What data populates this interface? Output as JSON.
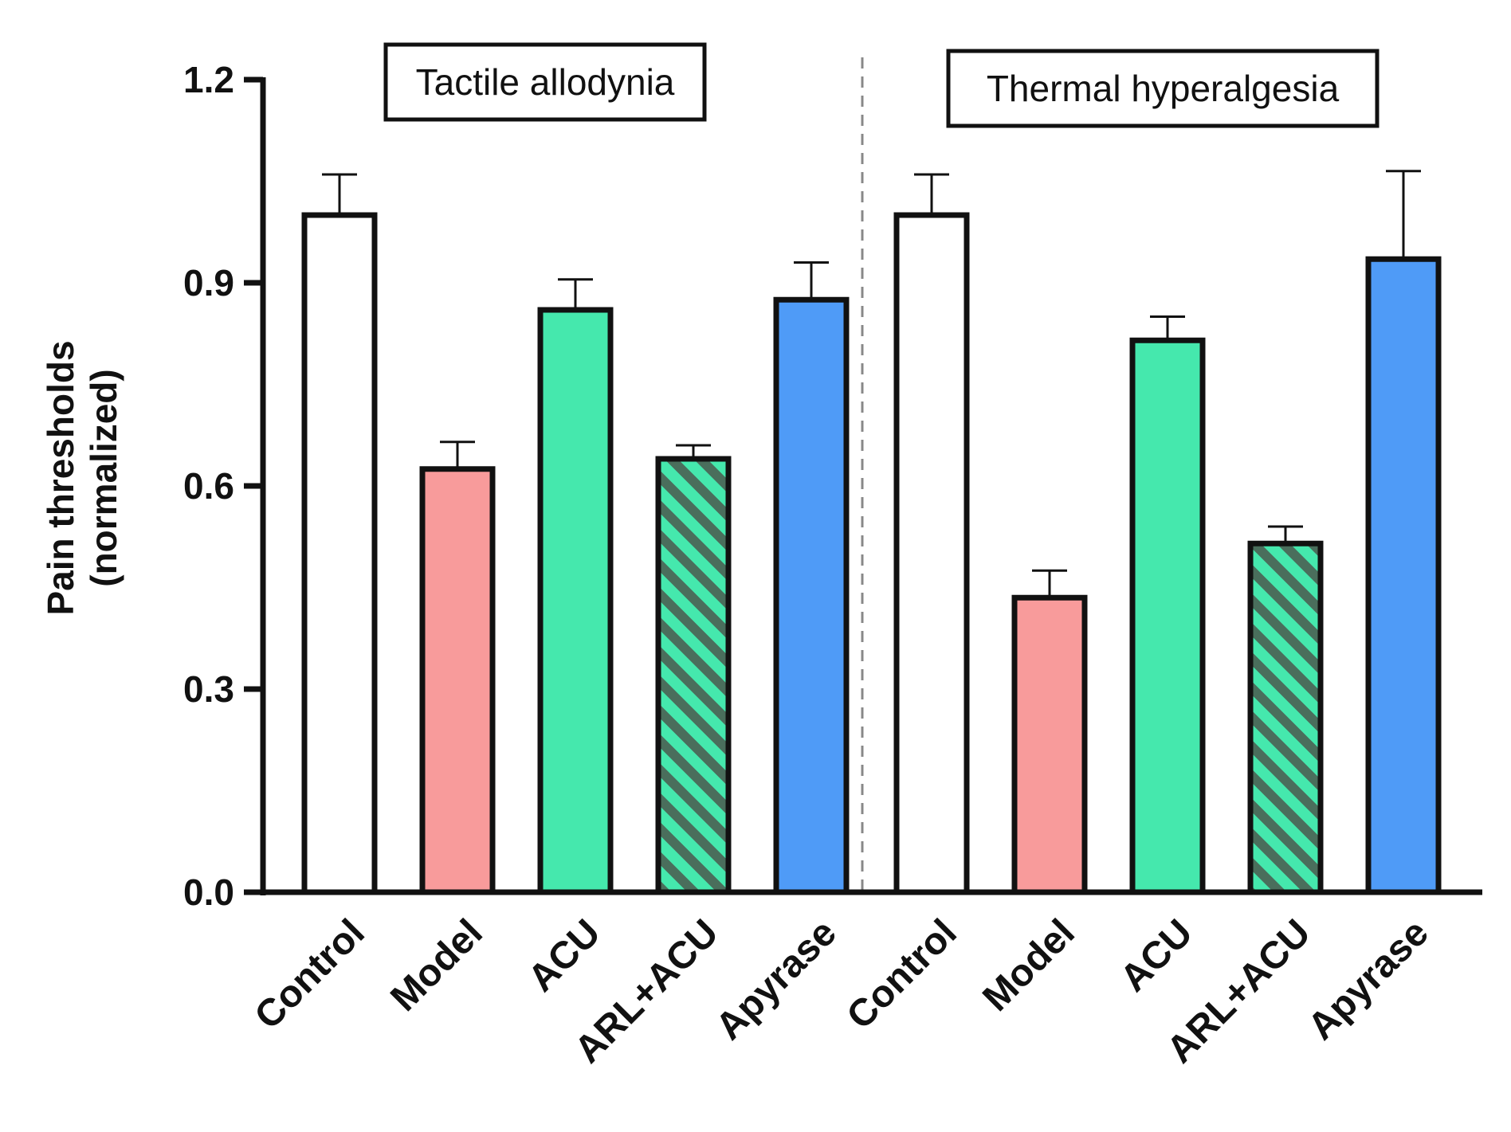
{
  "chart_data": {
    "type": "bar",
    "title": "",
    "xlabel": "",
    "ylabel": [
      "Pain thresholds",
      "(normalized)"
    ],
    "ylim": [
      0,
      1.2
    ],
    "yticks": [
      0.0,
      0.3,
      0.6,
      0.9,
      1.2
    ],
    "ytick_labels": [
      "0.0",
      "0.3",
      "0.6",
      "0.9",
      "1.2"
    ],
    "grid": false,
    "legend": "none",
    "colors": {
      "Control": "#ffffff",
      "Model": "#f89b9b",
      "ACU": "#45e8ad",
      "ARL+ACU": "#45e8ad",
      "ARL+ACU_stripe": "#4a6e5c",
      "Apyrase": "#4f9bf7",
      "outline": "#111111",
      "divider": "#888888"
    },
    "groups": [
      {
        "name": "Tactile allodynia",
        "categories": [
          "Control",
          "Model",
          "ACU",
          "ARL+ACU",
          "Apyrase"
        ],
        "values": [
          1.0,
          0.625,
          0.86,
          0.64,
          0.875
        ],
        "errors": [
          0.06,
          0.04,
          0.045,
          0.02,
          0.055
        ],
        "hatched": [
          false,
          false,
          false,
          true,
          false
        ]
      },
      {
        "name": "Thermal hyperalgesia",
        "categories": [
          "Control",
          "Model",
          "ACU",
          "ARL+ACU",
          "Apyrase"
        ],
        "values": [
          1.0,
          0.435,
          0.815,
          0.515,
          0.935
        ],
        "errors": [
          0.06,
          0.04,
          0.035,
          0.025,
          0.13
        ],
        "hatched": [
          false,
          false,
          false,
          true,
          false
        ]
      }
    ]
  }
}
